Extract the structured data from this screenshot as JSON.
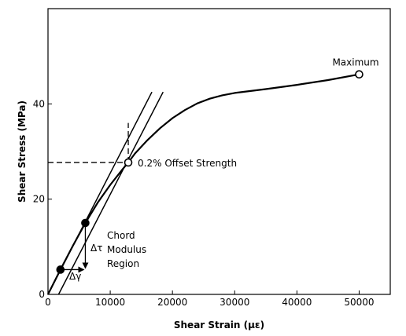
{
  "chart_data": {
    "type": "line",
    "xlabel": "Shear Strain (με)",
    "ylabel": "Shear Stress (MPa)",
    "xlim": [
      0,
      55000
    ],
    "ylim": [
      0,
      60
    ],
    "x_ticks": [
      0,
      10000,
      20000,
      30000,
      40000,
      50000
    ],
    "y_ticks": [
      0,
      20,
      40
    ],
    "grid": false,
    "series": [
      {
        "x": [
          0,
          2000,
          4000,
          6000,
          8000,
          10000,
          12000,
          12900,
          14000,
          16000,
          18000,
          20000,
          22000,
          24000,
          26000,
          28000,
          30000,
          35000,
          40000,
          45000,
          50000
        ],
        "y": [
          0,
          5.2,
          10.2,
          15.0,
          19.3,
          23.0,
          26.3,
          27.7,
          29.6,
          32.4,
          34.9,
          37.0,
          38.7,
          40.1,
          41.1,
          41.8,
          42.3,
          43.1,
          44.0,
          45.0,
          46.2
        ]
      }
    ],
    "reference_lines": [
      {
        "x": [
          0,
          16700
        ],
        "y": [
          0,
          42.5
        ]
      },
      {
        "x": [
          1700,
          18500
        ],
        "y": [
          0,
          42.5
        ]
      }
    ],
    "markers": [
      {
        "x": 2000,
        "y": 5.2,
        "filled": true
      },
      {
        "x": 6000,
        "y": 15.0,
        "filled": true
      },
      {
        "x": 12900,
        "y": 27.7,
        "filled": false
      },
      {
        "x": 50000,
        "y": 46.2,
        "filled": false
      }
    ],
    "offset_guides": {
      "horizontal": {
        "x": [
          0,
          12900
        ],
        "y": 27.7
      },
      "vertical": {
        "x": 12900,
        "y": [
          27.7,
          36.0
        ]
      }
    },
    "annotations": {
      "maximum": "Maximum",
      "offset_strength": "0.2% Offset Strength",
      "chord_line1": "Chord",
      "chord_line2": "Modulus",
      "chord_line3": "Region",
      "delta_tau": "Δτ",
      "delta_gamma": "Δγ"
    }
  }
}
